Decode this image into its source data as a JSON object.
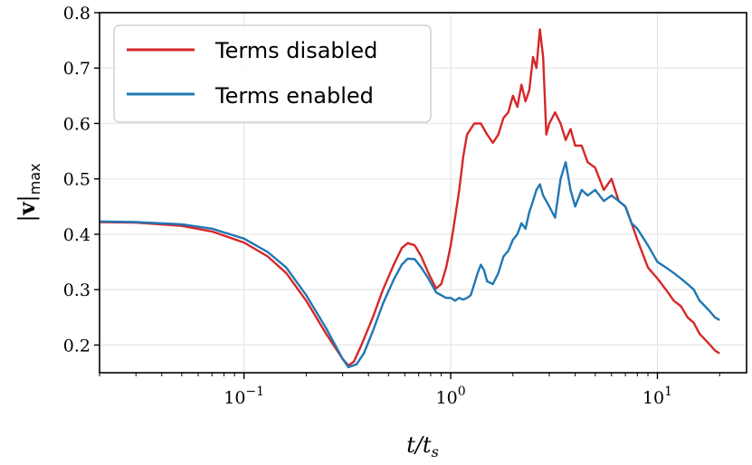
{
  "chart_data": {
    "type": "line",
    "xscale": "log",
    "xlim": [
      0.02,
      27
    ],
    "ylim": [
      0.15,
      0.8
    ],
    "grid": true,
    "xlabel": "t/t_s",
    "ylabel": "|v|_max",
    "xticks": [
      {
        "value": 0.1,
        "label": "10",
        "exp": "−1"
      },
      {
        "value": 1,
        "label": "10",
        "exp": "0"
      },
      {
        "value": 10,
        "label": "10",
        "exp": "1"
      }
    ],
    "yticks": [
      0.2,
      0.3,
      0.4,
      0.5,
      0.6,
      0.7,
      0.8
    ],
    "legend": {
      "position": "top-left"
    },
    "series": [
      {
        "name": "Terms disabled",
        "color": "#d62728",
        "points": [
          [
            0.02,
            0.422
          ],
          [
            0.03,
            0.421
          ],
          [
            0.05,
            0.415
          ],
          [
            0.07,
            0.405
          ],
          [
            0.1,
            0.385
          ],
          [
            0.13,
            0.36
          ],
          [
            0.16,
            0.33
          ],
          [
            0.2,
            0.28
          ],
          [
            0.25,
            0.22
          ],
          [
            0.3,
            0.175
          ],
          [
            0.32,
            0.163
          ],
          [
            0.34,
            0.17
          ],
          [
            0.37,
            0.2
          ],
          [
            0.42,
            0.25
          ],
          [
            0.47,
            0.3
          ],
          [
            0.53,
            0.345
          ],
          [
            0.58,
            0.375
          ],
          [
            0.62,
            0.384
          ],
          [
            0.67,
            0.38
          ],
          [
            0.72,
            0.36
          ],
          [
            0.78,
            0.33
          ],
          [
            0.85,
            0.302
          ],
          [
            0.9,
            0.31
          ],
          [
            0.95,
            0.34
          ],
          [
            1.0,
            0.38
          ],
          [
            1.05,
            0.43
          ],
          [
            1.1,
            0.48
          ],
          [
            1.15,
            0.54
          ],
          [
            1.2,
            0.58
          ],
          [
            1.3,
            0.6
          ],
          [
            1.4,
            0.6
          ],
          [
            1.5,
            0.58
          ],
          [
            1.6,
            0.565
          ],
          [
            1.7,
            0.58
          ],
          [
            1.8,
            0.61
          ],
          [
            1.9,
            0.62
          ],
          [
            2.0,
            0.65
          ],
          [
            2.1,
            0.63
          ],
          [
            2.2,
            0.67
          ],
          [
            2.3,
            0.64
          ],
          [
            2.4,
            0.66
          ],
          [
            2.5,
            0.72
          ],
          [
            2.6,
            0.7
          ],
          [
            2.7,
            0.77
          ],
          [
            2.8,
            0.72
          ],
          [
            2.9,
            0.58
          ],
          [
            3.0,
            0.6
          ],
          [
            3.2,
            0.62
          ],
          [
            3.4,
            0.6
          ],
          [
            3.6,
            0.57
          ],
          [
            3.8,
            0.59
          ],
          [
            4.0,
            0.56
          ],
          [
            4.3,
            0.56
          ],
          [
            4.6,
            0.53
          ],
          [
            5.0,
            0.52
          ],
          [
            5.5,
            0.48
          ],
          [
            6.0,
            0.5
          ],
          [
            6.5,
            0.46
          ],
          [
            7.0,
            0.45
          ],
          [
            7.5,
            0.42
          ],
          [
            8.0,
            0.39
          ],
          [
            9.0,
            0.34
          ],
          [
            10.0,
            0.32
          ],
          [
            11.0,
            0.3
          ],
          [
            12.0,
            0.28
          ],
          [
            13.0,
            0.27
          ],
          [
            14.0,
            0.25
          ],
          [
            15.0,
            0.24
          ],
          [
            16.0,
            0.22
          ],
          [
            17.0,
            0.21
          ],
          [
            18.0,
            0.2
          ],
          [
            19.0,
            0.19
          ],
          [
            20.0,
            0.185
          ]
        ]
      },
      {
        "name": "Terms enabled",
        "color": "#1f77b4",
        "points": [
          [
            0.02,
            0.423
          ],
          [
            0.03,
            0.422
          ],
          [
            0.05,
            0.418
          ],
          [
            0.07,
            0.41
          ],
          [
            0.1,
            0.392
          ],
          [
            0.13,
            0.368
          ],
          [
            0.16,
            0.34
          ],
          [
            0.2,
            0.29
          ],
          [
            0.25,
            0.23
          ],
          [
            0.3,
            0.175
          ],
          [
            0.32,
            0.16
          ],
          [
            0.35,
            0.165
          ],
          [
            0.38,
            0.185
          ],
          [
            0.42,
            0.225
          ],
          [
            0.47,
            0.275
          ],
          [
            0.53,
            0.318
          ],
          [
            0.58,
            0.345
          ],
          [
            0.62,
            0.356
          ],
          [
            0.67,
            0.355
          ],
          [
            0.72,
            0.34
          ],
          [
            0.78,
            0.32
          ],
          [
            0.85,
            0.295
          ],
          [
            0.9,
            0.29
          ],
          [
            0.95,
            0.285
          ],
          [
            1.0,
            0.285
          ],
          [
            1.05,
            0.28
          ],
          [
            1.1,
            0.285
          ],
          [
            1.15,
            0.282
          ],
          [
            1.2,
            0.285
          ],
          [
            1.25,
            0.29
          ],
          [
            1.3,
            0.31
          ],
          [
            1.35,
            0.33
          ],
          [
            1.4,
            0.345
          ],
          [
            1.45,
            0.335
          ],
          [
            1.5,
            0.315
          ],
          [
            1.6,
            0.31
          ],
          [
            1.7,
            0.33
          ],
          [
            1.8,
            0.36
          ],
          [
            1.9,
            0.37
          ],
          [
            2.0,
            0.39
          ],
          [
            2.1,
            0.4
          ],
          [
            2.2,
            0.42
          ],
          [
            2.3,
            0.41
          ],
          [
            2.4,
            0.44
          ],
          [
            2.5,
            0.46
          ],
          [
            2.6,
            0.48
          ],
          [
            2.7,
            0.49
          ],
          [
            2.8,
            0.47
          ],
          [
            3.0,
            0.45
          ],
          [
            3.2,
            0.43
          ],
          [
            3.4,
            0.5
          ],
          [
            3.6,
            0.53
          ],
          [
            3.8,
            0.48
          ],
          [
            4.0,
            0.45
          ],
          [
            4.3,
            0.48
          ],
          [
            4.6,
            0.47
          ],
          [
            5.0,
            0.48
          ],
          [
            5.5,
            0.46
          ],
          [
            6.0,
            0.47
          ],
          [
            6.5,
            0.46
          ],
          [
            7.0,
            0.45
          ],
          [
            7.5,
            0.42
          ],
          [
            8.0,
            0.41
          ],
          [
            9.0,
            0.38
          ],
          [
            10.0,
            0.35
          ],
          [
            11.0,
            0.34
          ],
          [
            12.0,
            0.33
          ],
          [
            13.0,
            0.32
          ],
          [
            14.0,
            0.31
          ],
          [
            15.0,
            0.3
          ],
          [
            16.0,
            0.28
          ],
          [
            17.0,
            0.27
          ],
          [
            18.0,
            0.26
          ],
          [
            19.0,
            0.25
          ],
          [
            20.0,
            0.245
          ]
        ]
      }
    ]
  }
}
